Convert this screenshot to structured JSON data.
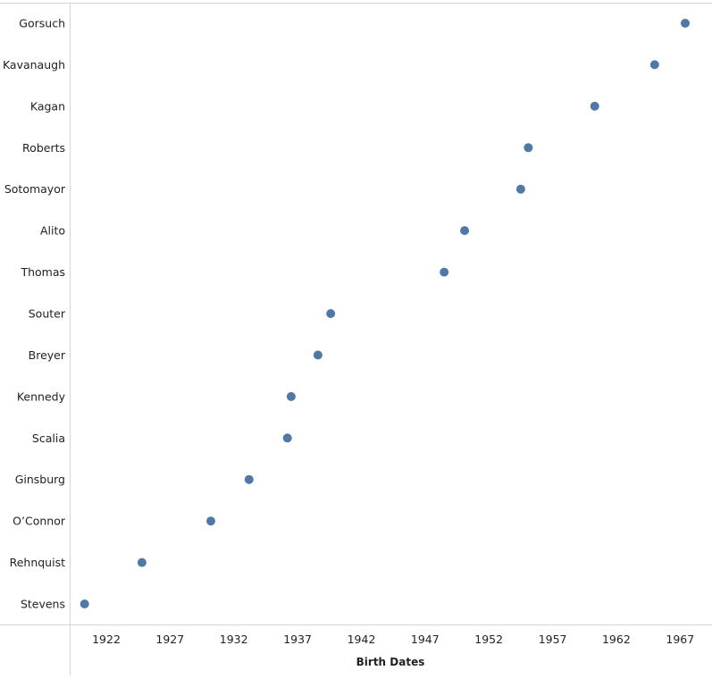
{
  "chart_data": {
    "type": "scatter",
    "title": "",
    "xlabel": "Birth Dates",
    "ylabel": "",
    "xlim": [
      1919.2,
      1969.5
    ],
    "grid": false,
    "legend": "none",
    "marker_color": "#4e79a7",
    "xticks": [
      "1922",
      "1927",
      "1932",
      "1937",
      "1942",
      "1947",
      "1952",
      "1957",
      "1962",
      "1967"
    ],
    "xtick_values": [
      1922,
      1927,
      1932,
      1937,
      1942,
      1947,
      1952,
      1957,
      1962,
      1967
    ],
    "points": [
      {
        "name": "Gorsuch",
        "x": 1967.4
      },
      {
        "name": "Kavanaugh",
        "x": 1965.0
      },
      {
        "name": "Kagan",
        "x": 1960.3
      },
      {
        "name": "Roberts",
        "x": 1955.1
      },
      {
        "name": "Sotomayor",
        "x": 1954.5
      },
      {
        "name": "Alito",
        "x": 1950.1
      },
      {
        "name": "Thomas",
        "x": 1948.5
      },
      {
        "name": "Souter",
        "x": 1939.6
      },
      {
        "name": "Breyer",
        "x": 1938.6
      },
      {
        "name": "Kennedy",
        "x": 1936.5
      },
      {
        "name": "Scalia",
        "x": 1936.2
      },
      {
        "name": "Ginsburg",
        "x": 1933.2
      },
      {
        "name": "O’Connor",
        "x": 1930.2
      },
      {
        "name": "Rehnquist",
        "x": 1924.8
      },
      {
        "name": "Stevens",
        "x": 1920.3
      }
    ]
  }
}
